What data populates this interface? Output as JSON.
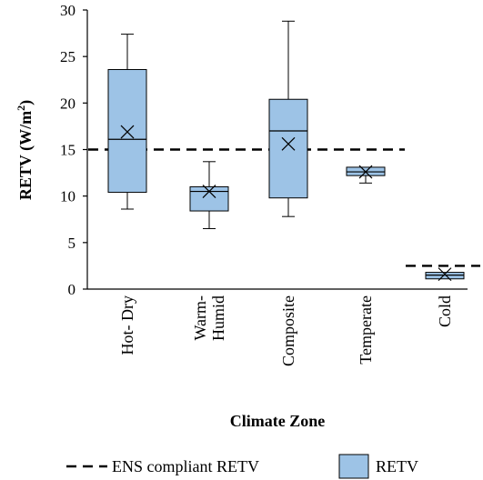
{
  "chart_data": {
    "type": "box",
    "ylabel": "RETV (W/m2)",
    "ylabel_main": "RETV (W/m",
    "ylabel_sup": "2",
    "ylabel_end": ")",
    "xlabel": "Climate Zone",
    "ylim": [
      0,
      30
    ],
    "yticks": [
      0,
      5,
      10,
      15,
      20,
      25,
      30
    ],
    "categories": [
      {
        "label_lines": [
          "Hot- Dry"
        ],
        "min": 8.6,
        "q1": 10.4,
        "median": 16.1,
        "q3": 23.6,
        "max": 27.4,
        "mean": 16.9
      },
      {
        "label_lines": [
          "Warm-",
          "Humid"
        ],
        "min": 6.5,
        "q1": 8.4,
        "median": 10.5,
        "q3": 11.0,
        "max": 13.7,
        "mean": 10.5
      },
      {
        "label_lines": [
          "Composite"
        ],
        "min": 7.8,
        "q1": 9.8,
        "median": 17.0,
        "q3": 20.4,
        "max": 28.8,
        "mean": 15.6
      },
      {
        "label_lines": [
          "Temperate"
        ],
        "min": 11.4,
        "q1": 12.2,
        "median": 12.6,
        "q3": 13.1,
        "max": 13.1,
        "mean": 12.6
      },
      {
        "label_lines": [
          "Cold"
        ],
        "min": 1.1,
        "q1": 1.1,
        "median": 1.5,
        "q3": 1.8,
        "max": 1.8,
        "mean": 1.6
      }
    ],
    "reference_lines": [
      {
        "name": "ENS compliant RETV",
        "value": 15.0,
        "from_category": 0,
        "to_category": 3
      },
      {
        "name": "ENS compliant RETV",
        "value": 2.5,
        "from_category": 4,
        "to_category": 4
      }
    ],
    "legend": {
      "position": "bottom",
      "items": [
        {
          "label": "ENS compliant RETV",
          "style": "dashed-line"
        },
        {
          "label": "RETV",
          "style": "box"
        }
      ]
    },
    "grid": false,
    "colors": {
      "box_fill": "#9dc3e6",
      "stroke": "#000000"
    }
  }
}
